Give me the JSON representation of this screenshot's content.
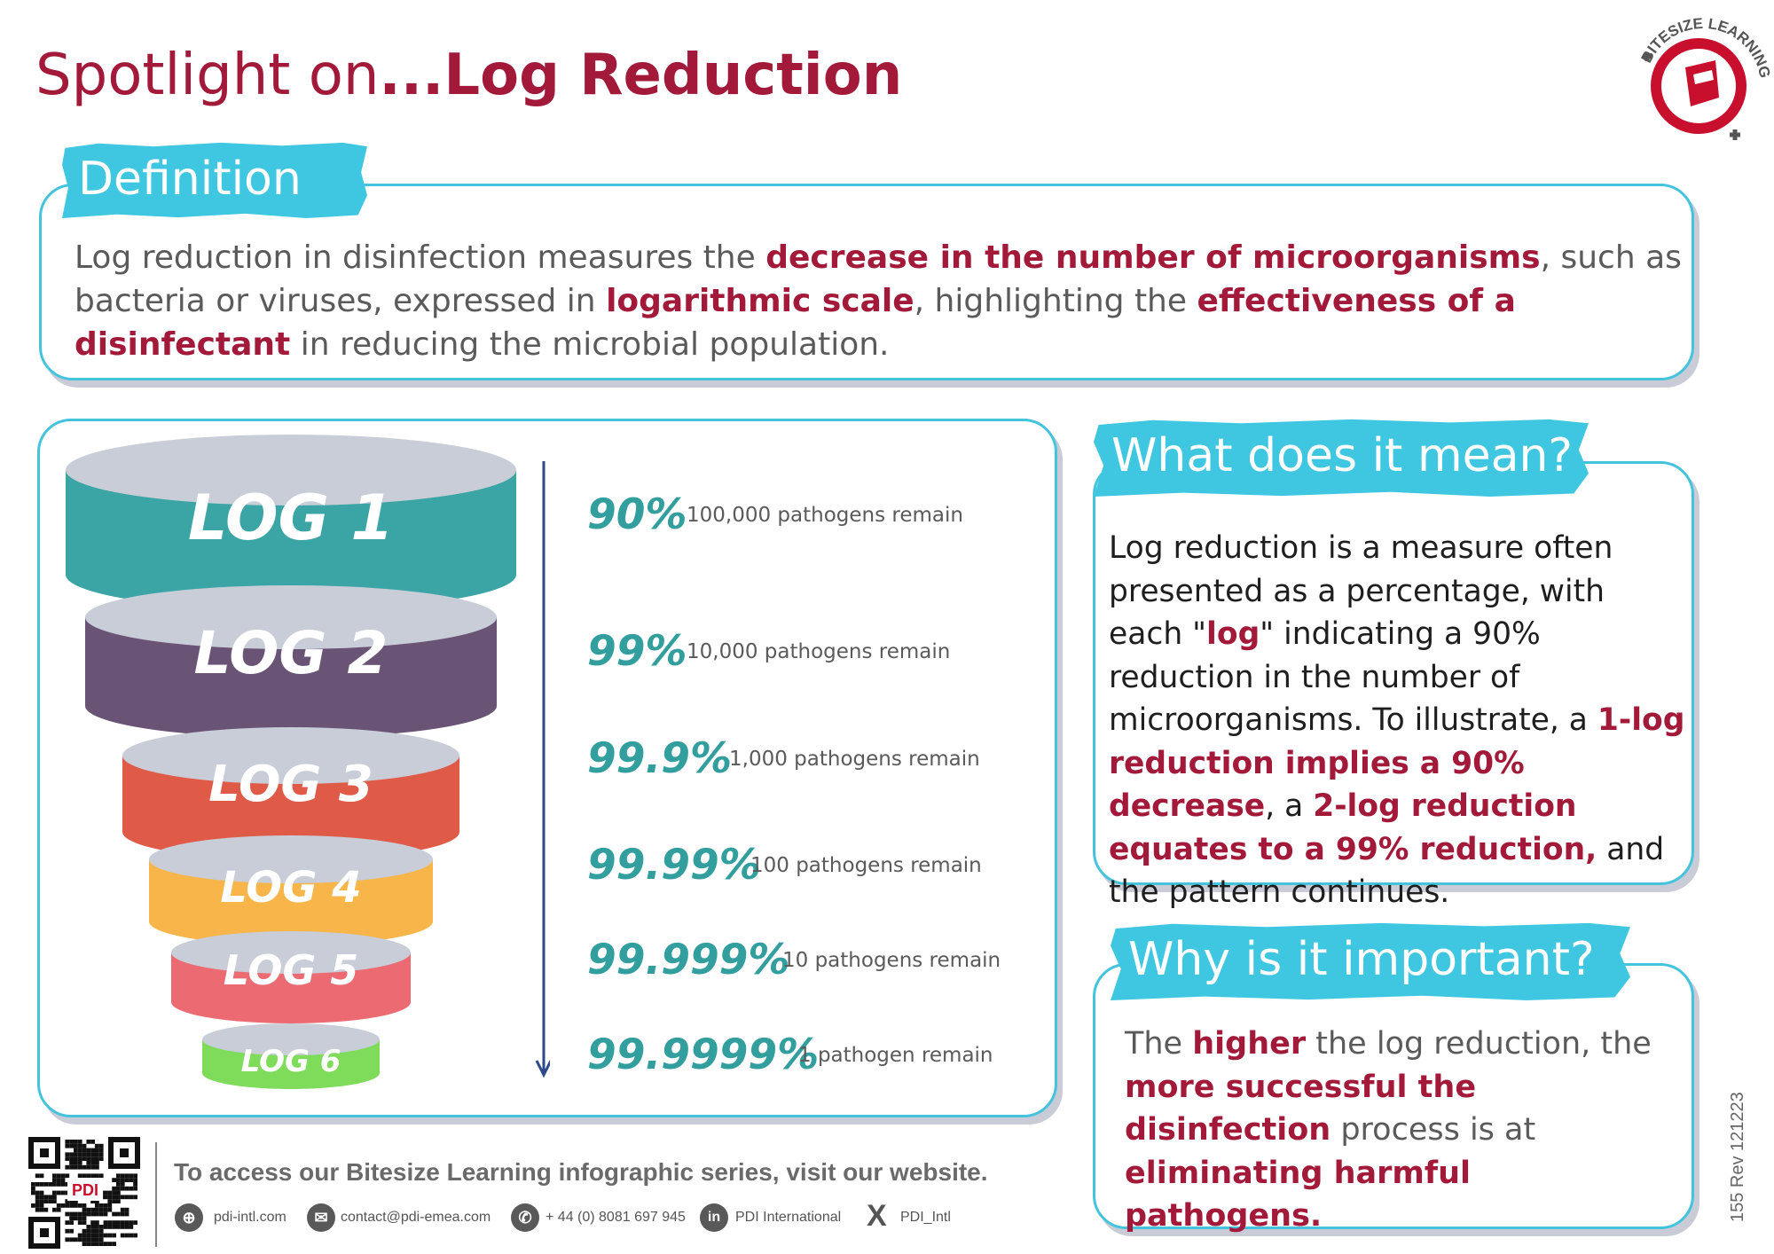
{
  "header": {
    "title_prefix": "Spotlight on",
    "title_main": "...Log Reduction",
    "logo_text": "BITESIZE LEARNING"
  },
  "definition": {
    "heading": "Definition",
    "parts": [
      "Log reduction in disinfection measures the ",
      "decrease in the number of microorganisms",
      ", such as bacteria or viruses, expressed in ",
      "logarithmic scale",
      ", highlighting the ",
      "effectiveness of a disinfectant",
      " in reducing the microbial population."
    ]
  },
  "funnel": {
    "levels": [
      {
        "label": "LOG 1",
        "percent": "90%",
        "remain": "100,000 pathogens remain",
        "color": "#3aa5a4"
      },
      {
        "label": "LOG 2",
        "percent": "99%",
        "remain": "10,000 pathogens remain",
        "color": "#6a5476"
      },
      {
        "label": "LOG 3",
        "percent": "99.9%",
        "remain": "1,000 pathogens remain",
        "color": "#e05a48"
      },
      {
        "label": "LOG 4",
        "percent": "99.99%",
        "remain": "100 pathogens remain",
        "color": "#f7b54a"
      },
      {
        "label": "LOG 5",
        "percent": "99.999%",
        "remain": "10 pathogens remain",
        "color": "#ec6b72"
      },
      {
        "label": "LOG 6",
        "percent": "99.9999%",
        "remain": "1 pathogen remain",
        "color": "#7edc5a"
      }
    ]
  },
  "meaning": {
    "heading": "What does it mean?",
    "parts": [
      "Log reduction is a measure often presented as a percentage, with each \"",
      "log",
      "\" indicating a 90% reduction in the number of microorganisms. To illustrate, a ",
      "1-log reduction implies a 90% decrease",
      ", a ",
      "2-log reduction equates to a 99% reduction,",
      " and the pattern continues."
    ]
  },
  "importance": {
    "heading": "Why is it important?",
    "parts": [
      "The ",
      "higher",
      " the log reduction, the ",
      "more successful the disinfection",
      " process is at ",
      "eliminating harmful pathogens."
    ]
  },
  "footer": {
    "cta": "To access our Bitesize Learning infographic series, visit our website.",
    "qr_label": "PDI",
    "website": "pdi-intl.com",
    "email": "contact@pdi-emea.com",
    "phone": "+ 44 (0) 8081 697 945",
    "linkedin": "PDI International",
    "x_handle": "PDI_Intl",
    "doc_ref": "155 Rev 121223"
  }
}
